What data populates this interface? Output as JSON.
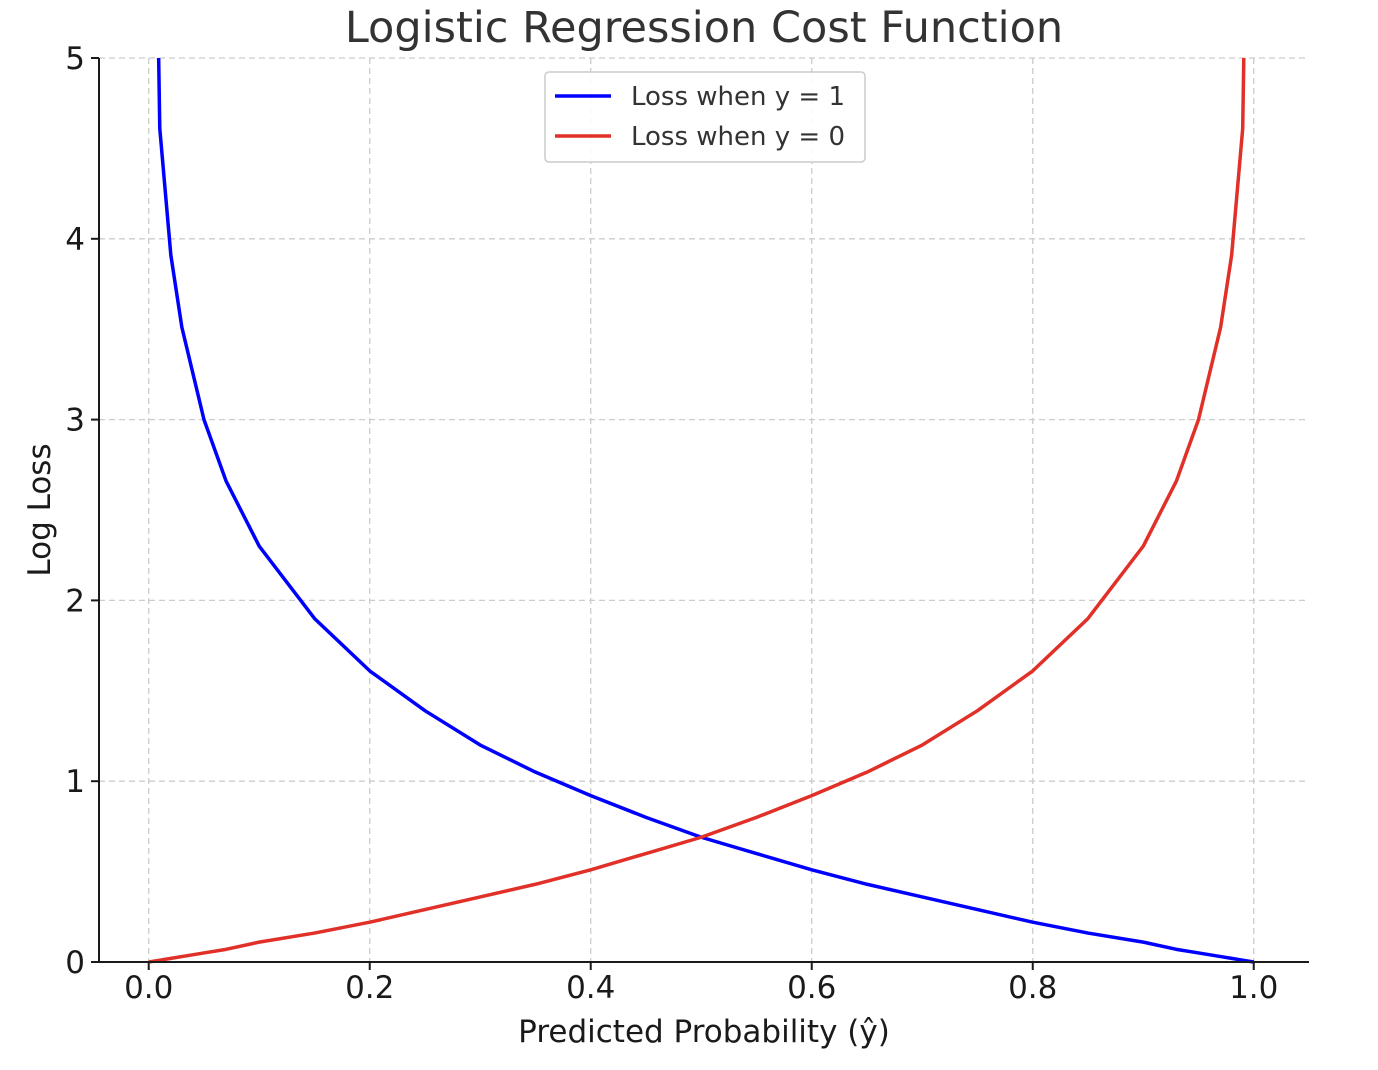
{
  "chart_data": {
    "type": "line",
    "title": "Logistic Regression Cost Function",
    "xlabel": "Predicted Probability (ŷ)",
    "ylabel": "Log Loss",
    "xlim": [
      -0.045,
      1.05
    ],
    "ylim": [
      0,
      5
    ],
    "xticks": [
      "0.0",
      "0.2",
      "0.4",
      "0.6",
      "0.8",
      "1.0"
    ],
    "yticks": [
      "0",
      "1",
      "2",
      "3",
      "4",
      "5"
    ],
    "grid": true,
    "legend_position": "upper center",
    "x": [
      0.01,
      0.02,
      0.03,
      0.05,
      0.07,
      0.1,
      0.15,
      0.2,
      0.25,
      0.3,
      0.35,
      0.4,
      0.45,
      0.5,
      0.55,
      0.6,
      0.65,
      0.7,
      0.75,
      0.8,
      0.85,
      0.9,
      0.93,
      0.95,
      0.97,
      0.98,
      0.99
    ],
    "series": [
      {
        "name": "Loss when y = 1",
        "color": "#0000ff",
        "values": [
          4.61,
          3.91,
          3.51,
          3.0,
          2.66,
          2.3,
          1.9,
          1.61,
          1.39,
          1.2,
          1.05,
          0.92,
          0.8,
          0.69,
          0.6,
          0.51,
          0.43,
          0.36,
          0.29,
          0.22,
          0.16,
          0.11,
          0.07,
          0.05,
          0.03,
          0.02,
          0.01
        ]
      },
      {
        "name": "Loss when y = 0",
        "color": "#e03028",
        "values": [
          0.01,
          0.02,
          0.03,
          0.05,
          0.07,
          0.11,
          0.16,
          0.22,
          0.29,
          0.36,
          0.43,
          0.51,
          0.6,
          0.69,
          0.8,
          0.92,
          1.05,
          1.2,
          1.39,
          1.61,
          1.9,
          2.3,
          2.66,
          3.0,
          3.51,
          3.91,
          4.61
        ]
      }
    ]
  }
}
